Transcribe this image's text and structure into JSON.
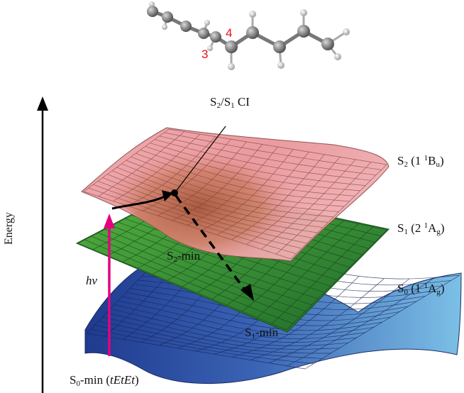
{
  "atom_labels": {
    "c3": "3",
    "c4": "4"
  },
  "axis": {
    "energy": "Energy"
  },
  "excitation": {
    "hv": "hv"
  },
  "points": {
    "ci": {
      "base": "S",
      "sub1": "2",
      "mid": "/S",
      "sub2": "1",
      "tail": " CI"
    },
    "s2_min": {
      "base": "S",
      "sub": "2",
      "tail": "-min"
    },
    "s1_min": {
      "base": "S",
      "sub": "1",
      "tail": "-min"
    },
    "s0_min": {
      "base": "S",
      "sub": "0",
      "tail": "-min (",
      "italic": "tEtEt",
      "close": ")"
    }
  },
  "states": [
    {
      "id": "S2",
      "base": "S",
      "sub": "2",
      "open": " (1 ",
      "sup": "1",
      "letter": "B",
      "sym": "u",
      "close": ")"
    },
    {
      "id": "S1",
      "base": "S",
      "sub": "1",
      "open": " (2 ",
      "sup": "1",
      "letter": "A",
      "sym": "g",
      "close": ")"
    },
    {
      "id": "S0",
      "base": "S",
      "sub": "0",
      "open": " (1 ",
      "sup": "1",
      "letter": "A",
      "sym": "g",
      "close": ")"
    }
  ],
  "colors": {
    "s2_surface": "#e59a9e",
    "s1_surface": "#3f9d3a",
    "s0_surface": "#3a5fb0",
    "excitation_arrow": "#e6007e",
    "atom_label": "#e8121b"
  }
}
